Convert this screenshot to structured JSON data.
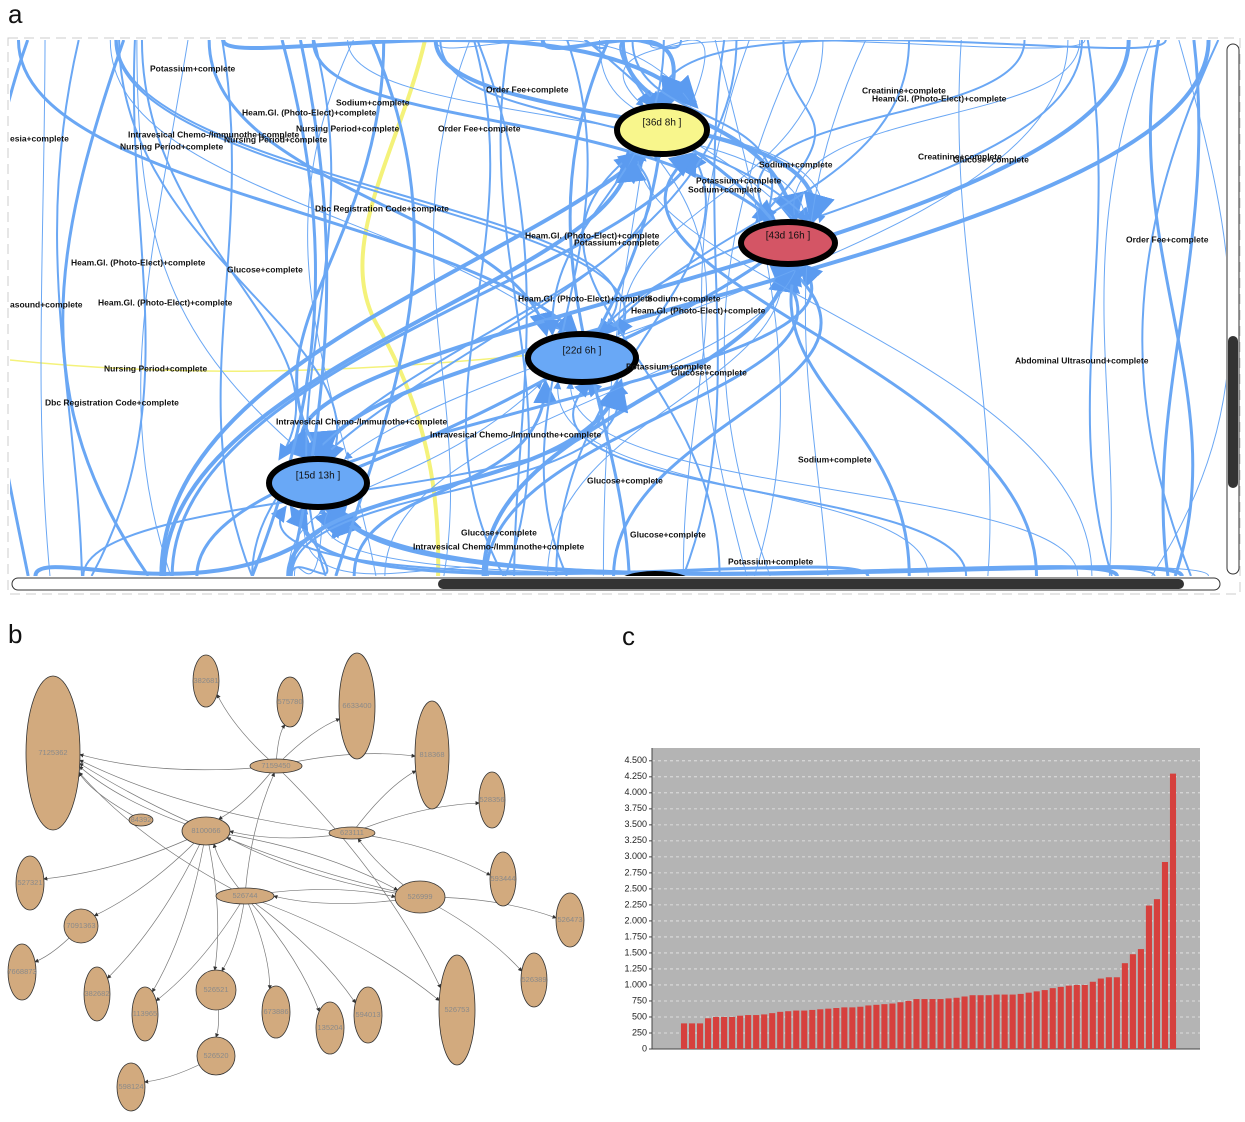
{
  "panels": {
    "a": {
      "label": "a",
      "nodes": [
        "[36d 8h ]",
        "[43d 16h ]",
        "[22d 6h ]",
        "[15d 13h ]"
      ],
      "edge_labels": [
        "Potassium+complete",
        "Order Fee+complete",
        "Sodium+complete",
        "Heam.Gl. (Photo-Elect)+complete",
        "Nursing Period+complete",
        "Order Fee+complete",
        "Intravesical Chemo-/Immunothe+complete",
        "Nursing Period+complete",
        "Nursing Period+complete",
        "esia+complete",
        "Creatinine+complete",
        "Heam.Gl. (Photo-Elect)+complete",
        "Creatinine+complete",
        "Glucose+complete",
        "Sodium+complete",
        "Potassium+complete",
        "Sodium+complete",
        "Dbc Registration Code+complete",
        "Heam.Gl. (Photo-Elect)+complete",
        "Potassium+complete",
        "Order Fee+complete",
        "Heam.Gl. (Photo-Elect)+complete",
        "Glucose+complete",
        "Heam.Gl. (Photo-Elect)+complete",
        "Sodium+complete",
        "Heam.Gl. (Photo-Elect)+complete",
        "Heam.Gl. (Photo-Elect)+complete",
        "asound+complete",
        "Abdominal Ultrasound+complete",
        "Nursing Period+complete",
        "Potassium+complete",
        "Glucose+complete",
        "Dbc Registration Code+complete",
        "Intravesical Chemo-/Immunothe+complete",
        "Intravesical Chemo-/Immunothe+complete",
        "Sodium+complete",
        "Glucose+complete",
        "Glucose+complete",
        "Glucose+complete",
        "Intravesical Chemo-/Immunothe+complete",
        "Potassium+complete"
      ]
    },
    "b": {
      "label": "b",
      "nodes": [
        "7125362",
        "382681",
        "575780",
        "6633400",
        "818368",
        "7159450",
        "84392",
        "8100066",
        "623111",
        "528356",
        "527321",
        "593444",
        "526744",
        "526999",
        "526473",
        "7091363",
        "7668873",
        "382682",
        "113965",
        "526521",
        "673886",
        "135204",
        "594013",
        "526753",
        "526389",
        "526520",
        "598124"
      ]
    },
    "c": {
      "label": "c"
    }
  },
  "chart_data": {
    "type": "bar",
    "color": "#d6403d",
    "background": "#b4b4b4",
    "grid": true,
    "values": [
      400,
      400,
      400,
      480,
      500,
      500,
      500,
      520,
      530,
      530,
      540,
      560,
      580,
      590,
      600,
      600,
      610,
      620,
      630,
      640,
      650,
      650,
      660,
      680,
      690,
      700,
      710,
      730,
      750,
      780,
      780,
      780,
      780,
      790,
      800,
      820,
      840,
      840,
      840,
      850,
      850,
      850,
      860,
      880,
      900,
      920,
      950,
      970,
      990,
      1000,
      1000,
      1050,
      1100,
      1120,
      1120,
      1340,
      1480,
      1560,
      2240,
      2340,
      2920,
      4300
    ],
    "ylim": [
      0,
      4700
    ],
    "yticks": [
      0,
      250,
      500,
      750,
      {
        "value": 1000,
        "label": "1.000"
      },
      {
        "value": 1250,
        "label": "1.250"
      },
      {
        "value": 1500,
        "label": "1.500"
      },
      {
        "value": 1750,
        "label": "1.750"
      },
      {
        "value": 2000,
        "label": "2.000"
      },
      {
        "value": 2250,
        "label": "2.250"
      },
      {
        "value": 2500,
        "label": "2.500"
      },
      {
        "value": 2750,
        "label": "2.750"
      },
      {
        "value": 3000,
        "label": "3.000"
      },
      {
        "value": 3250,
        "label": "3.250"
      },
      {
        "value": 3500,
        "label": "3.500"
      },
      {
        "value": 3750,
        "label": "3.750"
      },
      {
        "value": 4000,
        "label": "4.000"
      },
      {
        "value": 4250,
        "label": "4.250"
      },
      {
        "value": 4500,
        "label": "4.500"
      }
    ]
  }
}
